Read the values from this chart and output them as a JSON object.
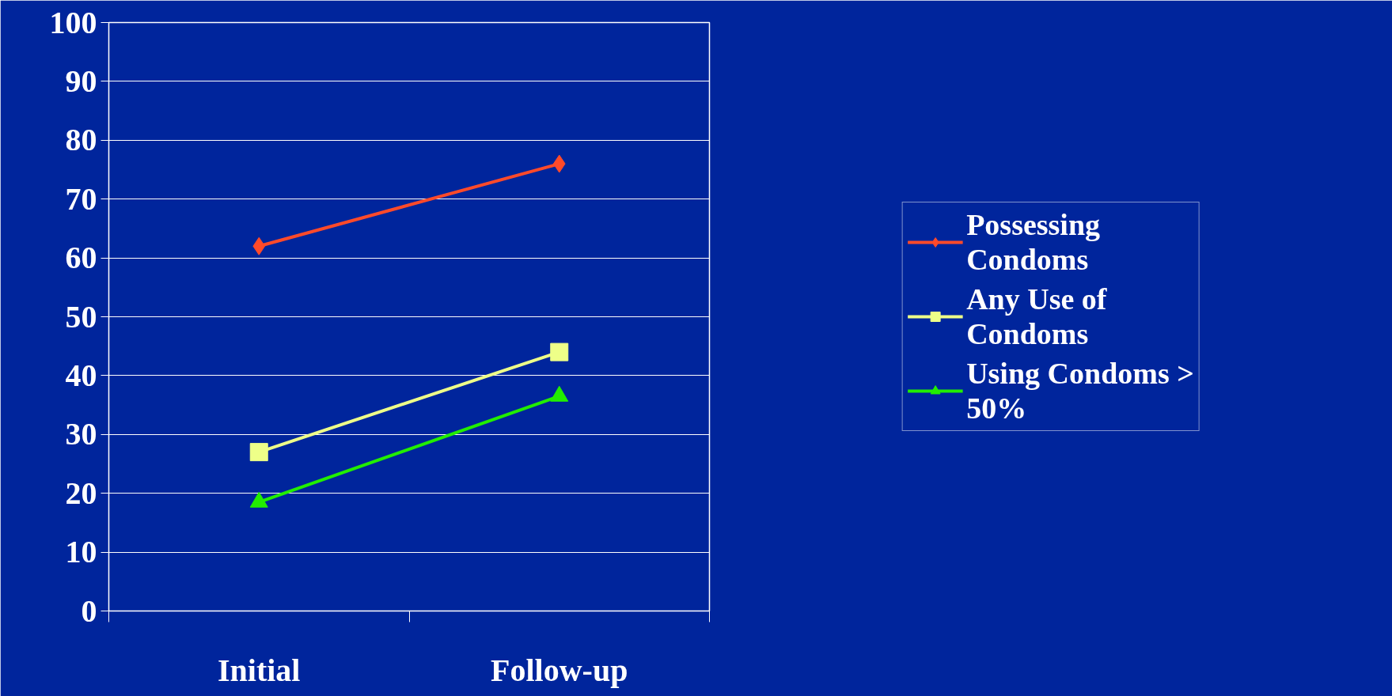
{
  "chart_data": {
    "type": "line",
    "categories": [
      "Initial",
      "Follow-up"
    ],
    "series": [
      {
        "name": "Possessing Condoms",
        "color": "#ff4a2a",
        "marker": "diamond",
        "values": [
          62,
          76
        ]
      },
      {
        "name": "Any Use of Condoms",
        "color": "#eeff88",
        "marker": "square",
        "values": [
          27,
          44
        ]
      },
      {
        "name": "Using Condoms > 50%",
        "color": "#22ee00",
        "marker": "triangle",
        "values": [
          18.5,
          36.5
        ]
      }
    ],
    "ylim": [
      0,
      100
    ],
    "yticks": [
      0,
      10,
      20,
      30,
      40,
      50,
      60,
      70,
      80,
      90,
      100
    ],
    "grid": "y",
    "legend": "right"
  }
}
